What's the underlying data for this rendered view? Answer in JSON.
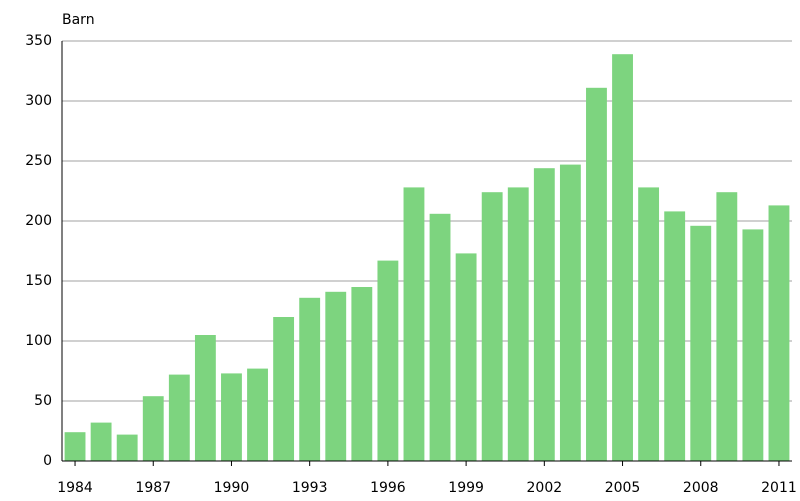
{
  "chart_data": {
    "type": "bar",
    "y_axis_label": "Barn",
    "categories": [
      "1984",
      null,
      null,
      "1987",
      null,
      null,
      "1990",
      null,
      null,
      "1993",
      null,
      null,
      "1996",
      null,
      null,
      "1999",
      null,
      null,
      "2002",
      null,
      null,
      "2005",
      null,
      null,
      "2008",
      null,
      null,
      "2011"
    ],
    "values": [
      24,
      32,
      22,
      54,
      72,
      105,
      73,
      77,
      120,
      136,
      141,
      145,
      167,
      228,
      206,
      173,
      224,
      228,
      244,
      247,
      311,
      339,
      228,
      208,
      196,
      224,
      193,
      213
    ],
    "color": "#7dd47f",
    "ylim": [
      0,
      350
    ],
    "yticks": [
      0,
      50,
      100,
      150,
      200,
      250,
      300,
      350
    ],
    "grid": true
  }
}
